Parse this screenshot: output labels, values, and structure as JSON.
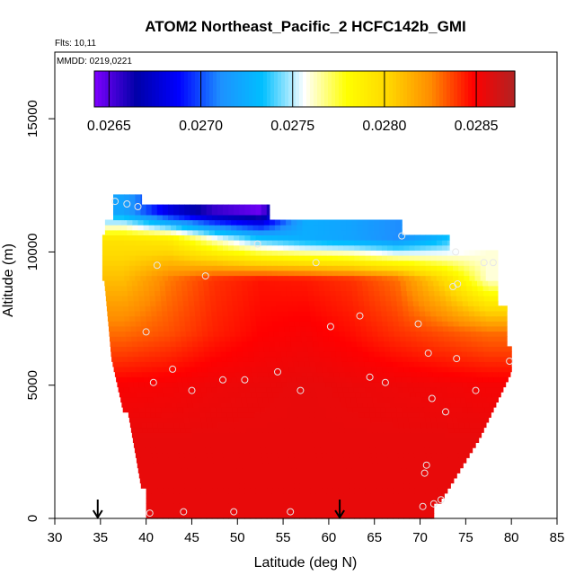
{
  "chart_data": {
    "type": "heatmap",
    "title": "ATOM2 Northeast_Pacific_2 HCFC142b_GMI",
    "flights_text": "Flts: 10,11",
    "dates_text": "MMDD: 0219,0221",
    "xlabel": "Latitude (deg N)",
    "ylabel": "Altitude (m)",
    "xlim": [
      30,
      85
    ],
    "ylim": [
      0,
      17500
    ],
    "x_ticks": [
      "30",
      "35",
      "40",
      "45",
      "50",
      "55",
      "60",
      "65",
      "70",
      "75",
      "80",
      "85"
    ],
    "y_ticks": [
      "0",
      "5000",
      "10000",
      "15000"
    ],
    "colorbar": {
      "range": [
        0.02642,
        0.02871
      ],
      "ticks": [
        "0.0265",
        "0.0270",
        "0.0275",
        "0.0280",
        "0.0285"
      ],
      "colors": [
        "#7e00ff",
        "#0000a8",
        "#0000ff",
        "#1e90ff",
        "#00bfff",
        "#ffffff",
        "#ffff00",
        "#ffd700",
        "#ff8c00",
        "#ff0000",
        "#b22222"
      ]
    },
    "field": {
      "lat_bins": [
        [
          35,
          40
        ],
        [
          40,
          45
        ],
        [
          45,
          50
        ],
        [
          50,
          55
        ],
        [
          55,
          60
        ],
        [
          60,
          65
        ],
        [
          65,
          70
        ],
        [
          70,
          75
        ],
        [
          75,
          80
        ]
      ],
      "alt_bins": [
        [
          0,
          2000
        ],
        [
          2000,
          4000
        ],
        [
          4000,
          6000
        ],
        [
          6000,
          8000
        ],
        [
          8000,
          10000
        ],
        [
          10000,
          11000
        ],
        [
          11000,
          12000
        ]
      ],
      "values": [
        [
          0.02855,
          0.02855,
          0.02855,
          0.02855,
          0.02855,
          0.02855,
          0.02855,
          0.02855,
          0.02855
        ],
        [
          0.02855,
          0.02855,
          0.02855,
          0.02855,
          0.02855,
          0.02855,
          0.02855,
          0.02855,
          0.02855
        ],
        [
          0.0285,
          0.02851,
          0.02853,
          0.02854,
          0.02855,
          0.02854,
          0.02853,
          0.02852,
          0.02851
        ],
        [
          0.0283,
          0.02835,
          0.02843,
          0.02848,
          0.0285,
          0.02846,
          0.0284,
          0.02835,
          0.0283
        ],
        [
          0.0281,
          0.02828,
          0.0284,
          0.02845,
          0.02844,
          0.0284,
          0.0283,
          0.028,
          0.0276
        ],
        [
          0.02795,
          0.0279,
          0.0276,
          0.02735,
          0.02725,
          0.0272,
          0.0271,
          0.0273,
          0.0276
        ],
        [
          0.0272,
          0.0268,
          0.02655,
          0.02645,
          null,
          null,
          null,
          null,
          null
        ]
      ]
    },
    "flight_points": [
      [
        40.4,
        200
      ],
      [
        44.1,
        250
      ],
      [
        49.6,
        250
      ],
      [
        55.8,
        250
      ],
      [
        70.3,
        450
      ],
      [
        71.5,
        550
      ],
      [
        72.3,
        700
      ],
      [
        70.5,
        1700
      ],
      [
        70.7,
        2000
      ],
      [
        72.8,
        4000
      ],
      [
        71.3,
        4500
      ],
      [
        76.1,
        4800
      ],
      [
        66.2,
        5100
      ],
      [
        64.5,
        5300
      ],
      [
        60.2,
        7200
      ],
      [
        63.4,
        7600
      ],
      [
        69.8,
        7300
      ],
      [
        70.9,
        6200
      ],
      [
        74.0,
        6000
      ],
      [
        79.8,
        5900
      ],
      [
        40.8,
        5100
      ],
      [
        42.9,
        5600
      ],
      [
        45.0,
        4800
      ],
      [
        48.4,
        5200
      ],
      [
        50.8,
        5200
      ],
      [
        54.4,
        5500
      ],
      [
        56.9,
        4800
      ],
      [
        40.0,
        7000
      ],
      [
        41.2,
        9500
      ],
      [
        46.5,
        9100
      ],
      [
        52.2,
        10300
      ],
      [
        58.6,
        9600
      ],
      [
        68.0,
        10600
      ],
      [
        73.9,
        10000
      ],
      [
        77.0,
        9600
      ],
      [
        78.0,
        9600
      ],
      [
        73.6,
        8700
      ],
      [
        74.1,
        8800
      ],
      [
        36.6,
        11900
      ],
      [
        37.9,
        11800
      ],
      [
        39.1,
        11700
      ]
    ],
    "arrows_lat": [
      34.7,
      61.2
    ]
  }
}
